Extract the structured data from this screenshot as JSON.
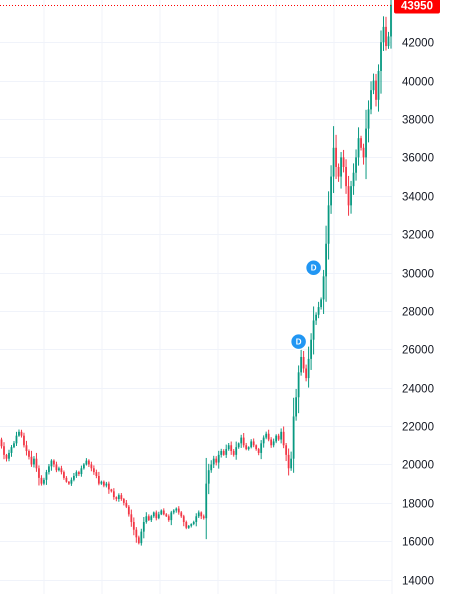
{
  "chart_data": {
    "type": "candlestick",
    "yaxis": {
      "ticks": [
        "14000",
        "16000",
        "18000",
        "20000",
        "22000",
        "24000",
        "26000",
        "28000",
        "30000",
        "32000",
        "34000",
        "36000",
        "38000",
        "40000",
        "42000"
      ],
      "tick_values": [
        14000,
        16000,
        18000,
        20000,
        22000,
        24000,
        26000,
        28000,
        30000,
        32000,
        34000,
        36000,
        38000,
        40000,
        42000
      ],
      "position": "right",
      "range": [
        13250,
        44200
      ]
    },
    "grid": true,
    "last_price": {
      "label": "43950",
      "value": 43950,
      "color": "#ff0000"
    },
    "up_color": "#089981",
    "down_color": "#f23645",
    "marker_color": "#2196f3",
    "markers": [
      {
        "label": "D",
        "price": 26400,
        "bar_index": 120
      },
      {
        "label": "D",
        "price": 30250,
        "bar_index": 126
      }
    ],
    "closes": [
      21300,
      20950,
      20500,
      20300,
      20600,
      20900,
      21100,
      21500,
      21700,
      21500,
      21000,
      20700,
      20400,
      20000,
      20300,
      19800,
      19300,
      19000,
      19200,
      19600,
      19900,
      20200,
      20000,
      19700,
      19800,
      19600,
      19300,
      19100,
      19000,
      19200,
      19400,
      19600,
      19500,
      19800,
      20000,
      20200,
      20000,
      19800,
      19600,
      19400,
      19000,
      19100,
      18900,
      19000,
      18700,
      18600,
      18300,
      18200,
      18400,
      18200,
      18000,
      17800,
      17400,
      17000,
      16600,
      16200,
      15900,
      16500,
      17000,
      17300,
      17100,
      17300,
      17500,
      17200,
      17400,
      17600,
      17400,
      17300,
      17100,
      17500,
      17600,
      17700,
      17500,
      17300,
      17000,
      16700,
      16800,
      16900,
      17000,
      17300,
      17500,
      17300,
      17200,
      19000,
      19700,
      20000,
      20300,
      20100,
      20500,
      20700,
      20500,
      20800,
      21000,
      20700,
      20500,
      20900,
      21100,
      21400,
      21000,
      20800,
      20900,
      21200,
      21000,
      20800,
      20600,
      21100,
      21400,
      21600,
      21300,
      21000,
      21200,
      21500,
      21300,
      21700,
      21000,
      20500,
      19800,
      20300,
      22500,
      23500,
      24800,
      25600,
      25000,
      24500,
      25500,
      26500,
      27500,
      27800,
      28200,
      28600,
      29800,
      31500,
      33500,
      35000,
      36500,
      35500,
      35000,
      36000,
      35500,
      34500,
      33500,
      34500,
      35200,
      36000,
      37000,
      36500,
      36000,
      37500,
      38500,
      39500,
      40000,
      39000,
      40500,
      42000,
      42800,
      41800,
      42300,
      43950
    ]
  }
}
